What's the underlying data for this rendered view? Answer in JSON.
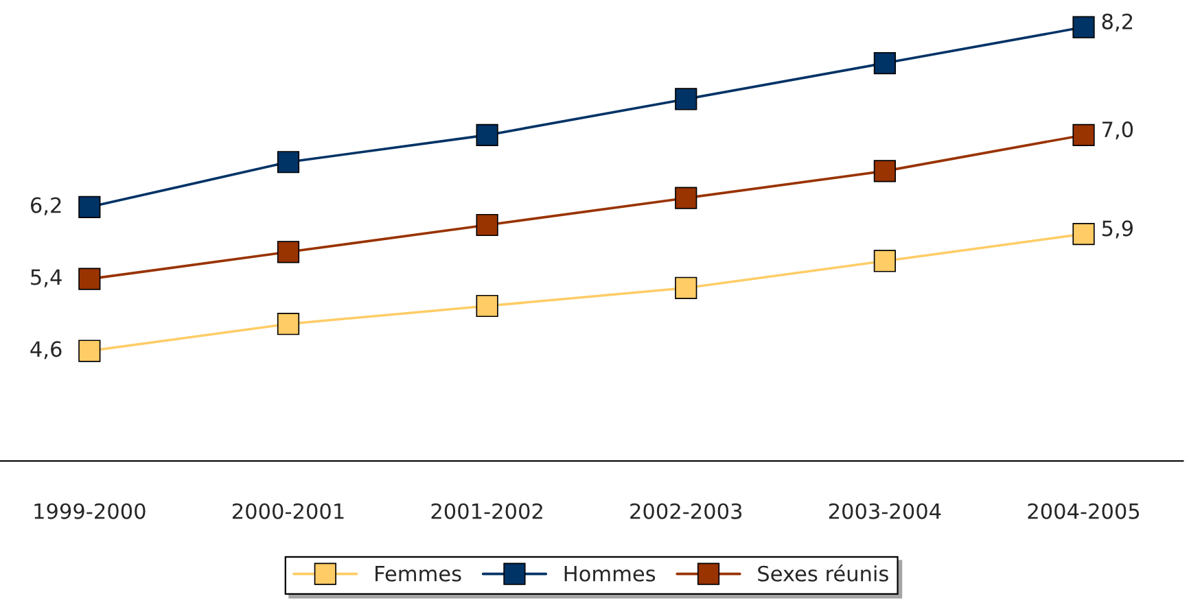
{
  "chart_data": {
    "type": "line",
    "categories": [
      "1999-2000",
      "2000-2001",
      "2001-2002",
      "2002-2003",
      "2003-2004",
      "2004-2005"
    ],
    "series": [
      {
        "name": "Femmes",
        "color": "#ffcc66",
        "values": [
          4.6,
          4.9,
          5.1,
          5.3,
          5.6,
          5.9
        ],
        "value_labels": [
          "4,6",
          null,
          null,
          null,
          null,
          "5,9"
        ]
      },
      {
        "name": "Hommes",
        "color": "#003366",
        "values": [
          6.2,
          6.7,
          7.0,
          7.4,
          7.8,
          8.2
        ],
        "value_labels": [
          "6,2",
          null,
          null,
          null,
          null,
          "8,2"
        ]
      },
      {
        "name": "Sexes réunis",
        "color": "#993300",
        "values": [
          5.4,
          5.7,
          6.0,
          6.3,
          6.6,
          7.0
        ],
        "value_labels": [
          "5,4",
          null,
          null,
          null,
          null,
          "7,0"
        ]
      }
    ],
    "tick_labels": "x",
    "marker": "square",
    "line_style": "solid",
    "grid": false,
    "legend": "bottom"
  }
}
